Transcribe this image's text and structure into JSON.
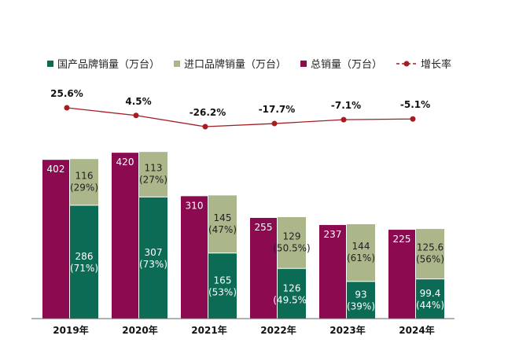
{
  "chart_data": {
    "type": "bar",
    "categories": [
      "2019年",
      "2020年",
      "2021年",
      "2022年",
      "2023年",
      "2024年"
    ],
    "series": [
      {
        "name": "国产品牌销量（万台）",
        "color": "#0b6b55",
        "values": [
          286,
          307,
          165,
          126,
          93,
          99.4
        ],
        "labels": [
          "286\n(71%)",
          "307\n(73%)",
          "165\n(53%)",
          "126\n(49.5%)",
          "93\n(39%)",
          "99.4\n(44%)"
        ]
      },
      {
        "name": "进口品牌销量（万台）",
        "color": "#abb68b",
        "values": [
          116,
          113,
          145,
          129,
          144,
          125.6
        ],
        "labels": [
          "116\n(29%)",
          "113\n(27%)",
          "145\n(47%)",
          "129\n(50.5%)",
          "144\n(61%)",
          "125.6\n(56%)"
        ]
      },
      {
        "name": "总销量（万台）",
        "color": "#8c0a50",
        "values": [
          402,
          420,
          310,
          255,
          237,
          225
        ],
        "labels": [
          "402",
          "420",
          "310",
          "255",
          "237",
          "225"
        ]
      },
      {
        "name": "增长率",
        "type": "line",
        "color": "#a51d22",
        "values": [
          25.6,
          4.5,
          -26.2,
          -17.7,
          -7.1,
          -5.1
        ],
        "labels": [
          "25.6%",
          "4.5%",
          "-26.2%",
          "-17.7%",
          "-7.1%",
          "-5.1%"
        ]
      }
    ],
    "legend_position": "top",
    "grid": false
  }
}
